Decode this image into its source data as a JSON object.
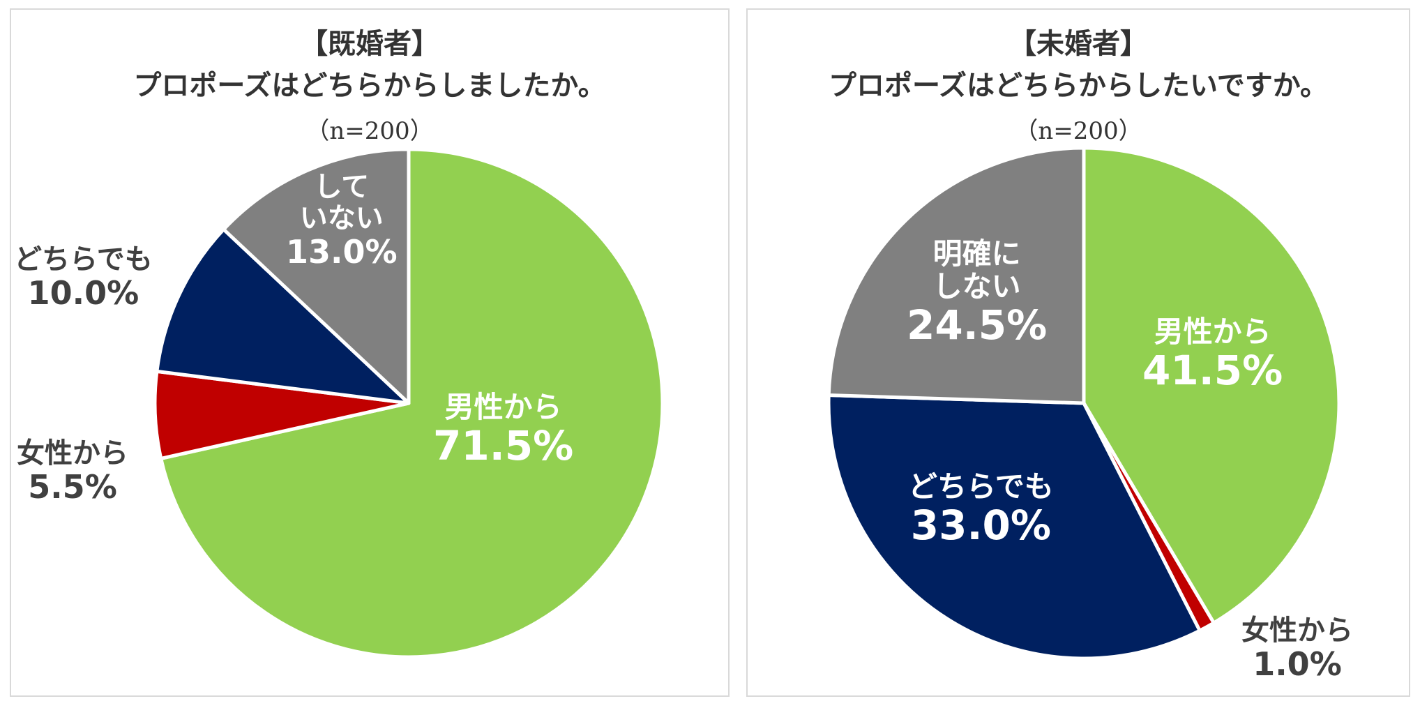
{
  "chart_data": [
    {
      "type": "pie",
      "title": "【既婚者】",
      "subtitle": "プロポーズはどちらからしましたか。",
      "note": "（n=200）",
      "slices": [
        {
          "label": "男性から",
          "value": 71.5,
          "value_label": "71.5%",
          "color": "#92d050"
        },
        {
          "label": "女性から",
          "value": 5.5,
          "value_label": "5.5%",
          "color": "#c00000"
        },
        {
          "label": "どちらでも",
          "value": 10.0,
          "value_label": "10.0%",
          "color": "#002060"
        },
        {
          "label_lines": [
            "して",
            "いない"
          ],
          "value": 13.0,
          "value_label": "13.0%",
          "color": "#808080"
        }
      ]
    },
    {
      "type": "pie",
      "title": "【未婚者】",
      "subtitle": "プロポーズはどちらからしたいですか。",
      "note": "（n=200）",
      "slices": [
        {
          "label": "男性から",
          "value": 41.5,
          "value_label": "41.5%",
          "color": "#92d050"
        },
        {
          "label": "女性から",
          "value": 1.0,
          "value_label": "1.0%",
          "color": "#c00000"
        },
        {
          "label": "どちらでも",
          "value": 33.0,
          "value_label": "33.0%",
          "color": "#002060"
        },
        {
          "label_lines": [
            "明確に",
            "しない"
          ],
          "value": 24.5,
          "value_label": "24.5%",
          "color": "#808080"
        }
      ]
    }
  ]
}
